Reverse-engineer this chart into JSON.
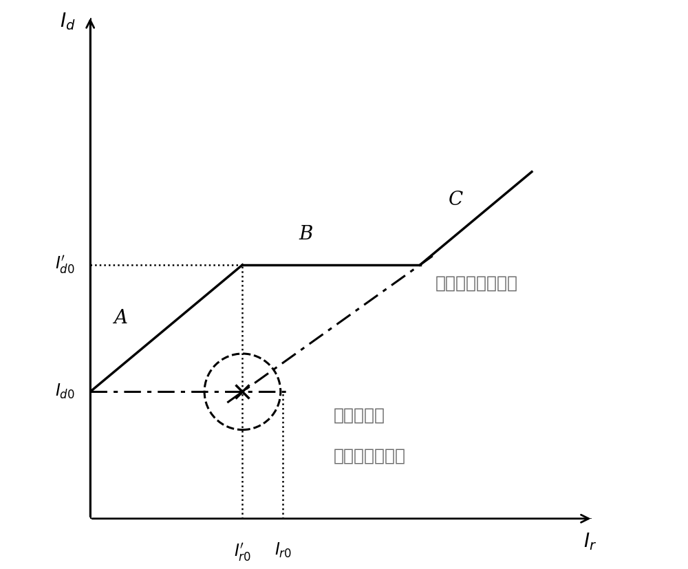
{
  "xlabel": "$I_r$",
  "ylabel": "$I_d$",
  "xlim": [
    0,
    10
  ],
  "ylim": [
    0,
    10
  ],
  "Id0": 2.5,
  "Id0_prime": 5.0,
  "Ir0": 3.8,
  "Ir0_prime": 3.0,
  "x_right_corner": 6.5,
  "circle_r": 0.75,
  "label_A": "A",
  "label_B": "B",
  "label_C": "C",
  "text1": "短时增强制动特性",
  "text2": "原制动特性",
  "text3": "和应涌流误动区",
  "lw_main": 2.5,
  "lw_ref": 1.8,
  "label_fontsize": 17,
  "point_fontsize": 20,
  "text_fontsize": 18,
  "axis_label_fontsize": 20
}
